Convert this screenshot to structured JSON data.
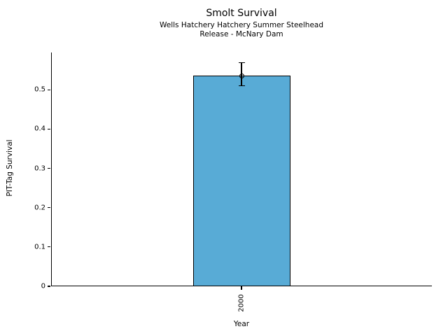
{
  "figure": {
    "background": "#ffffff"
  },
  "chart_data": {
    "type": "bar",
    "title": "Smolt Survival",
    "subtitle_line1": "Wells Hatchery Hatchery Summer Steelhead",
    "subtitle_line2": "Release - McNary Dam",
    "xlabel": "Year",
    "ylabel": "PIT-Tag Survival",
    "categories": [
      "2000"
    ],
    "values": [
      0.536
    ],
    "error_bars": [
      {
        "low": 0.51,
        "high": 0.569
      }
    ],
    "marker": "open-circle",
    "ylim": [
      0,
      0.595
    ],
    "yticks": [
      0,
      0.1,
      0.2,
      0.3,
      0.4,
      0.5
    ],
    "ytick_labels": [
      "0",
      "0.1",
      "0.2",
      "0.3",
      "0.4",
      "0.5"
    ],
    "grid": false,
    "legend": false,
    "bar_color": "#58ABD6",
    "bar_edge_color": "#000000",
    "axis_color": "#000000",
    "text_color": "#000000"
  }
}
